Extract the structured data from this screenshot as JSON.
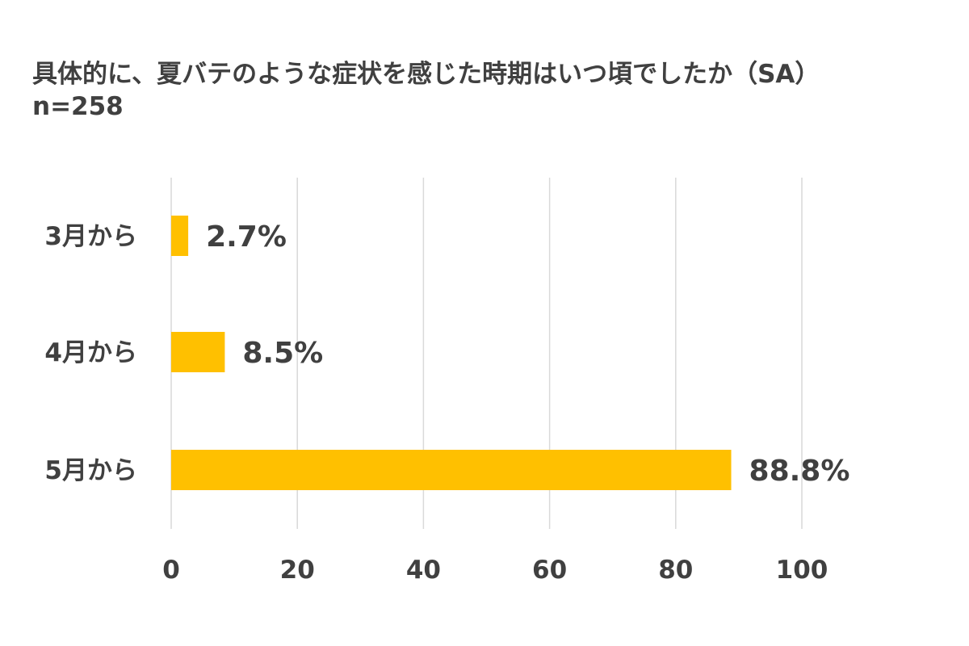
{
  "chart_data": {
    "type": "bar",
    "orientation": "horizontal",
    "title": "具体的に、夏バテのような症状を感じた時期はいつ頃でしたか（SA）",
    "subtitle": "n=258",
    "categories": [
      "3月から",
      "4月から",
      "5月から"
    ],
    "values": [
      2.7,
      8.5,
      88.8
    ],
    "data_labels": [
      "2.7%",
      "8.5%",
      "88.8%"
    ],
    "xlim": [
      0,
      100
    ],
    "xticks": [
      "0",
      "20",
      "40",
      "60",
      "80",
      "100"
    ],
    "grid": "vertical",
    "legend": "none",
    "bar_color": "#FFC000",
    "grid_color": "#D9D9D9",
    "text_color": "#404040"
  }
}
